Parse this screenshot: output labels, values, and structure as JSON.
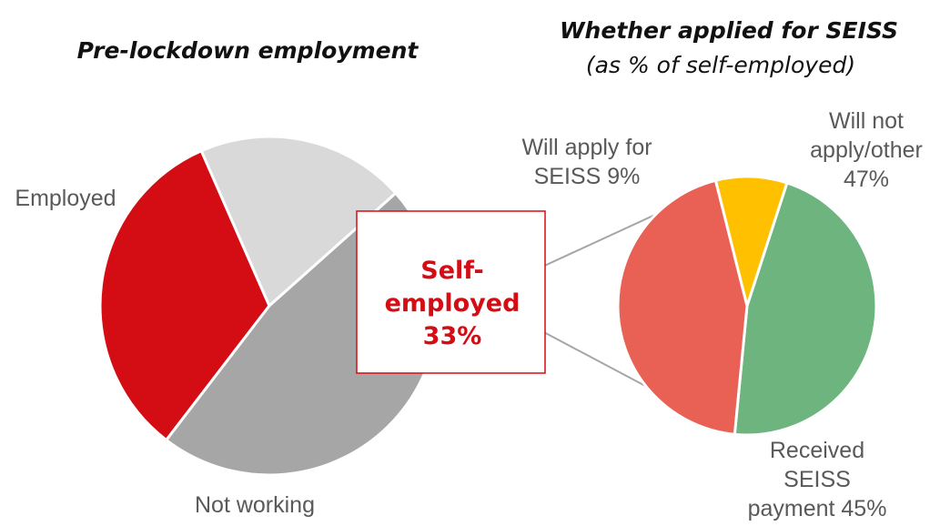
{
  "chart_data": [
    {
      "type": "pie",
      "title": "Pre-lockdown employment",
      "categories": [
        "Employed",
        "Self-employed",
        "Not working"
      ],
      "values": [
        47,
        33,
        20
      ],
      "labels": [
        "Employed",
        "Self-\nemployed\n33%",
        "Not working"
      ],
      "colors": [
        "#a6a6a6",
        "#d40c14",
        "#d9d9d9"
      ],
      "legend": "none"
    },
    {
      "type": "pie",
      "title": "Whether applied for SEISS",
      "subtitle": "(as % of self-employed)",
      "categories": [
        "Will apply for SEISS",
        "Will not apply/other",
        "Received SEISS payment"
      ],
      "values": [
        9,
        47,
        45
      ],
      "labels": [
        "Will apply for\nSEISS 9%",
        "Will not\napply/other\n47%",
        "Received\nSEISS\npayment 45%"
      ],
      "colors": [
        "#ffc000",
        "#6db47e",
        "#e96055"
      ],
      "legend": "none"
    }
  ]
}
